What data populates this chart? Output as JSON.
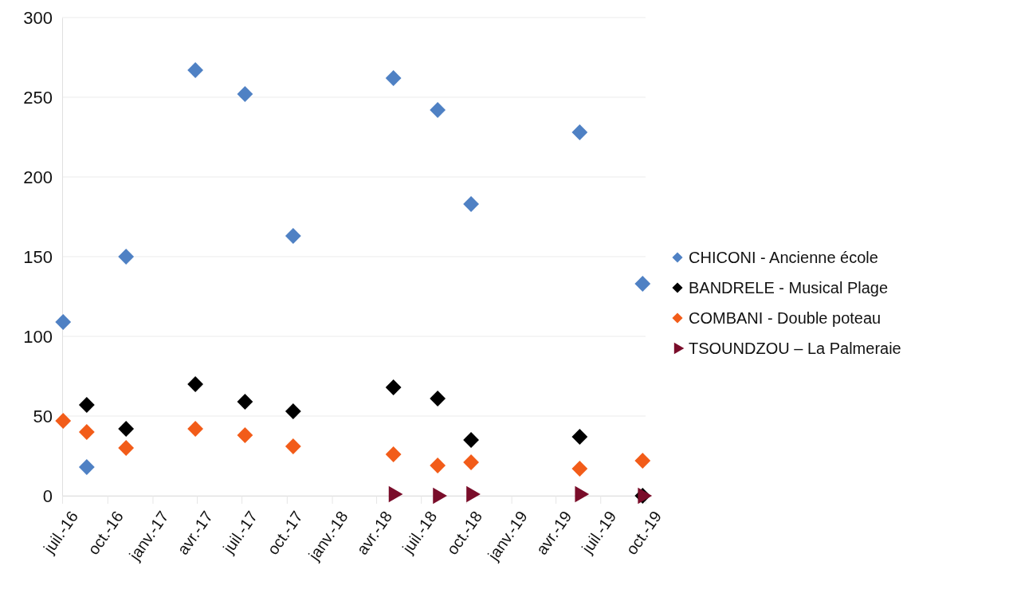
{
  "chart_data": {
    "type": "scatter",
    "xlim": [
      "2016-07-01",
      "2019-10-01"
    ],
    "xticks": [
      {
        "value": "2016-07-01",
        "label": "juil.-16"
      },
      {
        "value": "2016-10-01",
        "label": "oct.-16"
      },
      {
        "value": "2017-01-01",
        "label": "janv.-17"
      },
      {
        "value": "2017-04-01",
        "label": "avr.-17"
      },
      {
        "value": "2017-07-01",
        "label": "juil.-17"
      },
      {
        "value": "2017-10-01",
        "label": "oct.-17"
      },
      {
        "value": "2018-01-01",
        "label": "janv.-18"
      },
      {
        "value": "2018-04-01",
        "label": "avr.-18"
      },
      {
        "value": "2018-07-01",
        "label": "juil.-18"
      },
      {
        "value": "2018-10-01",
        "label": "oct.-18"
      },
      {
        "value": "2019-01-01",
        "label": "janv.-19"
      },
      {
        "value": "2019-04-01",
        "label": "avr.-19"
      },
      {
        "value": "2019-07-01",
        "label": "juil.-19"
      },
      {
        "value": "2019-10-01",
        "label": "oct.-19"
      }
    ],
    "ylim": [
      0,
      300
    ],
    "yticks": [
      0,
      50,
      100,
      150,
      200,
      250,
      300
    ],
    "grid": "y",
    "legend": "right",
    "marker": "diamond",
    "series": [
      {
        "name": "CHICONI - Ancienne école",
        "color": "#4f81c4",
        "x": [
          "2016-07-03",
          "2016-08-20",
          "2016-11-08",
          "2017-03-29",
          "2017-07-08",
          "2017-10-14",
          "2018-05-06",
          "2018-08-04",
          "2018-10-11",
          "2019-05-20",
          "2019-09-25"
        ],
        "values": [
          109,
          18,
          150,
          267,
          252,
          163,
          262,
          242,
          183,
          228,
          133
        ]
      },
      {
        "name": "BANDRELE - Musical Plage",
        "color": "#000000",
        "x": [
          "2016-08-20",
          "2016-11-08",
          "2017-03-29",
          "2017-07-08",
          "2017-10-14",
          "2018-05-06",
          "2018-08-04",
          "2018-10-11",
          "2019-05-20",
          "2019-09-25"
        ],
        "values": [
          57,
          42,
          70,
          59,
          53,
          68,
          61,
          35,
          37,
          0
        ]
      },
      {
        "name": "COMBANI - Double poteau",
        "color": "#f25c19",
        "x": [
          "2016-07-03",
          "2016-08-20",
          "2016-11-08",
          "2017-03-29",
          "2017-07-08",
          "2017-10-14",
          "2018-05-06",
          "2018-08-04",
          "2018-10-11",
          "2019-05-20",
          "2019-09-25"
        ],
        "values": [
          47,
          40,
          30,
          42,
          38,
          31,
          26,
          19,
          21,
          17,
          22
        ]
      },
      {
        "name": "TSOUNDZOU – La Palmeraie",
        "color": "#7a0d2a",
        "marker": "triangle",
        "x": [
          "2018-05-06",
          "2018-08-04",
          "2018-10-11",
          "2019-05-20",
          "2019-09-25"
        ],
        "values": [
          1,
          0,
          1,
          1,
          0
        ]
      }
    ]
  }
}
